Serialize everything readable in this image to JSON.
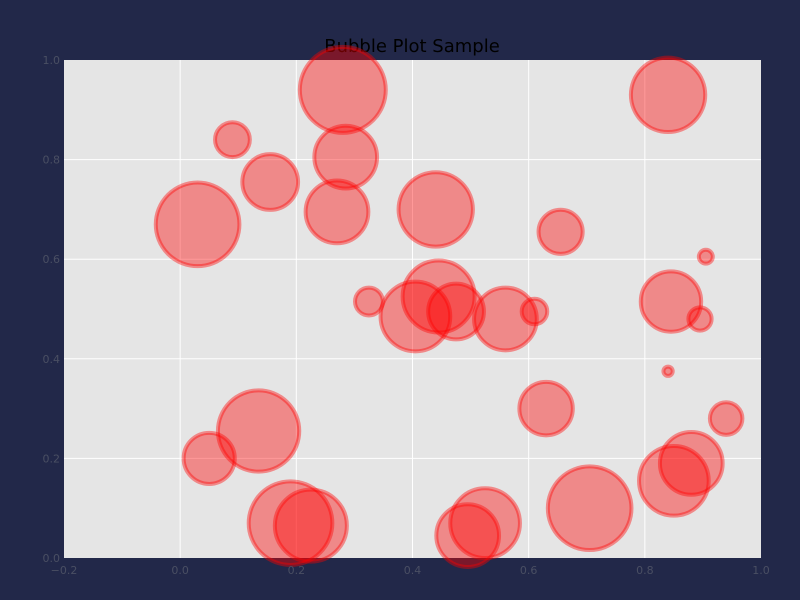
{
  "chart_data": {
    "type": "scatter",
    "title": "Bubble Plot Sample",
    "xlabel": "",
    "ylabel": "",
    "xlim": [
      -0.2,
      1.0
    ],
    "ylim": [
      0.0,
      1.0
    ],
    "x_ticks": [
      "−0.2",
      "0.0",
      "0.2",
      "0.4",
      "0.6",
      "0.8",
      "1.0"
    ],
    "x_tick_values": [
      -0.2,
      0.0,
      0.2,
      0.4,
      0.6,
      0.8,
      1.0
    ],
    "y_ticks": [
      "0.0",
      "0.2",
      "0.4",
      "0.6",
      "0.8",
      "1.0"
    ],
    "y_tick_values": [
      0.0,
      0.2,
      0.4,
      0.6,
      0.8,
      1.0
    ],
    "grid": true,
    "colors": {
      "background": "#222849",
      "plot_area": "#e5e5e5",
      "grid": "#ffffff",
      "bubble_fill": "#ff0000",
      "bubble_edge": "#ff0000"
    },
    "points": [
      {
        "x": 0.28,
        "y": 0.94,
        "size": 0.074
      },
      {
        "x": 0.84,
        "y": 0.93,
        "size": 0.064
      },
      {
        "x": 0.09,
        "y": 0.84,
        "size": 0.03
      },
      {
        "x": 0.285,
        "y": 0.805,
        "size": 0.054
      },
      {
        "x": 0.155,
        "y": 0.755,
        "size": 0.048
      },
      {
        "x": 0.03,
        "y": 0.67,
        "size": 0.072
      },
      {
        "x": 0.27,
        "y": 0.695,
        "size": 0.054
      },
      {
        "x": 0.44,
        "y": 0.7,
        "size": 0.064
      },
      {
        "x": 0.655,
        "y": 0.655,
        "size": 0.038
      },
      {
        "x": 0.905,
        "y": 0.605,
        "size": 0.012
      },
      {
        "x": 0.325,
        "y": 0.515,
        "size": 0.024
      },
      {
        "x": 0.445,
        "y": 0.525,
        "size": 0.062
      },
      {
        "x": 0.405,
        "y": 0.485,
        "size": 0.06
      },
      {
        "x": 0.475,
        "y": 0.495,
        "size": 0.048
      },
      {
        "x": 0.56,
        "y": 0.48,
        "size": 0.054
      },
      {
        "x": 0.61,
        "y": 0.495,
        "size": 0.022
      },
      {
        "x": 0.845,
        "y": 0.515,
        "size": 0.052
      },
      {
        "x": 0.895,
        "y": 0.48,
        "size": 0.02
      },
      {
        "x": 0.84,
        "y": 0.375,
        "size": 0.008
      },
      {
        "x": 0.63,
        "y": 0.3,
        "size": 0.046
      },
      {
        "x": 0.94,
        "y": 0.28,
        "size": 0.028
      },
      {
        "x": 0.135,
        "y": 0.255,
        "size": 0.07
      },
      {
        "x": 0.05,
        "y": 0.2,
        "size": 0.044
      },
      {
        "x": 0.88,
        "y": 0.19,
        "size": 0.054
      },
      {
        "x": 0.85,
        "y": 0.155,
        "size": 0.06
      },
      {
        "x": 0.705,
        "y": 0.1,
        "size": 0.072
      },
      {
        "x": 0.19,
        "y": 0.07,
        "size": 0.072
      },
      {
        "x": 0.225,
        "y": 0.065,
        "size": 0.062
      },
      {
        "x": 0.525,
        "y": 0.07,
        "size": 0.06
      },
      {
        "x": 0.495,
        "y": 0.045,
        "size": 0.054
      }
    ]
  }
}
